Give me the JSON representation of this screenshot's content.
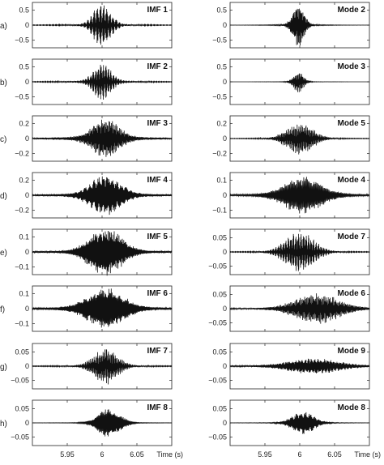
{
  "chart_data": {
    "type": "line",
    "row_labels": [
      "a)",
      "b)",
      "c)",
      "d)",
      "e)",
      "f)",
      "g)",
      "h)"
    ],
    "xlim": [
      5.9,
      6.1
    ],
    "xticks": [
      5.95,
      6,
      6.05
    ],
    "xtick_labels": [
      "5.95",
      "6",
      "6.05"
    ],
    "xlabel": "Time (s)",
    "columns": [
      {
        "panels": [
          {
            "label": "IMF 1",
            "ylim": [
              -0.75,
              0.75
            ],
            "yticks": [
              0.5,
              0,
              -0.5
            ],
            "ytick_labels": [
              "0.5",
              "0",
              "−0.5"
            ],
            "peak": 0.55,
            "center": 6.0,
            "freq": 300,
            "decay": 0.012,
            "tail": 0.08
          },
          {
            "label": "IMF 2",
            "ylim": [
              -0.75,
              0.75
            ],
            "yticks": [
              0.5,
              0,
              -0.5
            ],
            "ytick_labels": [
              "0.5",
              "0",
              "−0.5"
            ],
            "peak": 0.45,
            "center": 6.0,
            "freq": 260,
            "decay": 0.012,
            "tail": 0.12
          },
          {
            "label": "IMF 3",
            "ylim": [
              -0.3,
              0.3
            ],
            "yticks": [
              0.2,
              0,
              -0.2
            ],
            "ytick_labels": [
              "0.2",
              "0",
              "−0.2"
            ],
            "peak": 0.18,
            "center": 6.005,
            "freq": 220,
            "decay": 0.018,
            "tail": 0.2
          },
          {
            "label": "IMF 4",
            "ylim": [
              -0.3,
              0.3
            ],
            "yticks": [
              0.2,
              0,
              -0.2
            ],
            "ytick_labels": [
              "0.2",
              "0",
              "−0.2"
            ],
            "peak": 0.2,
            "center": 6.005,
            "freq": 180,
            "decay": 0.02,
            "tail": 0.15
          },
          {
            "label": "IMF 5",
            "ylim": [
              -0.15,
              0.15
            ],
            "yticks": [
              0.1,
              0,
              -0.1
            ],
            "ytick_labels": [
              "0.1",
              "0",
              "−0.1"
            ],
            "peak": 0.12,
            "center": 6.005,
            "freq": 400,
            "decay": 0.022,
            "tail": 0.1
          },
          {
            "label": "IMF 6",
            "ylim": [
              -0.15,
              0.15
            ],
            "yticks": [
              0.1,
              0,
              -0.1
            ],
            "ytick_labels": [
              "0.1",
              "0",
              "−0.1"
            ],
            "peak": 0.1,
            "center": 6.005,
            "freq": 420,
            "decay": 0.024,
            "tail": 0.15
          },
          {
            "label": "IMF 7",
            "ylim": [
              -0.08,
              0.08
            ],
            "yticks": [
              0.05,
              0,
              -0.05
            ],
            "ytick_labels": [
              "0.05",
              "0",
              "−0.05"
            ],
            "peak": 0.05,
            "center": 6.005,
            "freq": 250,
            "decay": 0.016,
            "tail": 0.08
          },
          {
            "label": "IMF 8",
            "ylim": [
              -0.08,
              0.08
            ],
            "yticks": [
              0.05,
              0,
              -0.05
            ],
            "ytick_labels": [
              "0.05",
              "0",
              "−0.05"
            ],
            "peak": 0.04,
            "center": 6.01,
            "freq": 140,
            "decay": 0.015,
            "tail": 0.05
          }
        ]
      },
      {
        "panels": [
          {
            "label": "Mode 2",
            "ylim": [
              -0.75,
              0.75
            ],
            "yticks": [
              0.5,
              0,
              -0.5
            ],
            "ytick_labels": [
              "0.5",
              "0",
              "−0.5"
            ],
            "peak": 0.55,
            "center": 5.998,
            "freq": 220,
            "decay": 0.008,
            "tail": 0.05
          },
          {
            "label": "Mode 3",
            "ylim": [
              -0.75,
              0.75
            ],
            "yticks": [
              0.5,
              0,
              -0.5
            ],
            "ytick_labels": [
              "0.5",
              "0",
              "−0.5"
            ],
            "peak": 0.28,
            "center": 5.998,
            "freq": 240,
            "decay": 0.007,
            "tail": 0.03
          },
          {
            "label": "Mode 5",
            "ylim": [
              -0.3,
              0.3
            ],
            "yticks": [
              0.2,
              0,
              -0.2
            ],
            "ytick_labels": [
              "0.2",
              "0",
              "−0.2"
            ],
            "peak": 0.17,
            "center": 6.0,
            "freq": 250,
            "decay": 0.018,
            "tail": 0.05
          },
          {
            "label": "Mode 4",
            "ylim": [
              -0.15,
              0.15
            ],
            "yticks": [
              0.1,
              0,
              -0.1
            ],
            "ytick_labels": [
              "0.1",
              "0",
              "−0.1"
            ],
            "peak": 0.09,
            "center": 6.005,
            "freq": 120,
            "decay": 0.025,
            "tail": 0.15
          },
          {
            "label": "Mode 7",
            "ylim": [
              -0.08,
              0.08
            ],
            "yticks": [
              0.05,
              0,
              -0.05
            ],
            "ytick_labels": [
              "0.05",
              "0",
              "−0.05"
            ],
            "peak": 0.055,
            "center": 6.0,
            "freq": 260,
            "decay": 0.02,
            "tail": 0.05
          },
          {
            "label": "Mode 6",
            "ylim": [
              -0.08,
              0.08
            ],
            "yticks": [
              0.05,
              0,
              -0.05
            ],
            "ytick_labels": [
              "0.05",
              "0",
              "−0.05"
            ],
            "peak": 0.04,
            "center": 6.025,
            "freq": 230,
            "decay": 0.03,
            "tail": 0.1
          },
          {
            "label": "Mode 9",
            "ylim": [
              -0.08,
              0.08
            ],
            "yticks": [
              0.05,
              0,
              -0.05
            ],
            "ytick_labels": [
              "0.05",
              "0",
              "−0.05"
            ],
            "peak": 0.02,
            "center": 6.02,
            "freq": 200,
            "decay": 0.035,
            "tail": 0.15
          },
          {
            "label": "Mode 8",
            "ylim": [
              -0.08,
              0.08
            ],
            "yticks": [
              0.05,
              0,
              -0.05
            ],
            "ytick_labels": [
              "0.05",
              "0",
              "−0.05"
            ],
            "peak": 0.032,
            "center": 6.005,
            "freq": 180,
            "decay": 0.015,
            "tail": 0.05
          }
        ]
      }
    ]
  }
}
